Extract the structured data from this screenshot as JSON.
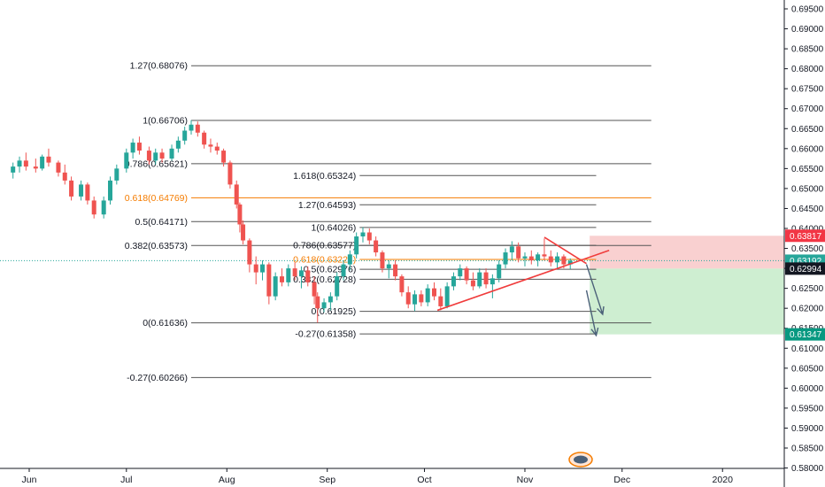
{
  "chart_data": {
    "type": "candlestick",
    "title": "",
    "price_scale": {
      "min": 0.58,
      "max": 0.695,
      "step": 0.005,
      "position": "right",
      "grid": false
    },
    "time_axis": {
      "labels": [
        {
          "label": "Jun",
          "date": "2019-06-01"
        },
        {
          "label": "Jul",
          "date": "2019-07-01"
        },
        {
          "label": "Aug",
          "date": "2019-08-01"
        },
        {
          "label": "Sep",
          "date": "2019-09-01"
        },
        {
          "label": "Oct",
          "date": "2019-10-01"
        },
        {
          "label": "Nov",
          "date": "2019-11-01"
        },
        {
          "label": "Dec",
          "date": "2019-12-01"
        },
        {
          "label": "2020",
          "date": "2020-01-01"
        }
      ]
    },
    "colors": {
      "up": "#26a69a",
      "down": "#ef5350",
      "fib_line": "#555555",
      "fib_orange": "#f57c00",
      "trend_line": "#f03c3c",
      "arrow": "#4a6078",
      "stop_zone": "#f8c8c8",
      "target_zone": "#c6ebc9",
      "label_red": "#f23645",
      "label_teal": "#26a69a",
      "label_dark": "#131722",
      "label_green": "#089981"
    },
    "candles": [
      {
        "t": "2019-05-27",
        "o": 0.654,
        "h": 0.6565,
        "l": 0.6525,
        "c": 0.6555
      },
      {
        "t": "2019-05-29",
        "o": 0.6555,
        "h": 0.658,
        "l": 0.654,
        "c": 0.657
      },
      {
        "t": "2019-05-31",
        "o": 0.657,
        "h": 0.659,
        "l": 0.6545,
        "c": 0.6555
      },
      {
        "t": "2019-06-03",
        "o": 0.6555,
        "h": 0.6575,
        "l": 0.654,
        "c": 0.655
      },
      {
        "t": "2019-06-05",
        "o": 0.655,
        "h": 0.6585,
        "l": 0.6545,
        "c": 0.658
      },
      {
        "t": "2019-06-07",
        "o": 0.658,
        "h": 0.66,
        "l": 0.6555,
        "c": 0.6565
      },
      {
        "t": "2019-06-10",
        "o": 0.6565,
        "h": 0.657,
        "l": 0.653,
        "c": 0.654
      },
      {
        "t": "2019-06-12",
        "o": 0.654,
        "h": 0.656,
        "l": 0.651,
        "c": 0.652
      },
      {
        "t": "2019-06-14",
        "o": 0.652,
        "h": 0.653,
        "l": 0.647,
        "c": 0.648
      },
      {
        "t": "2019-06-17",
        "o": 0.648,
        "h": 0.652,
        "l": 0.647,
        "c": 0.651
      },
      {
        "t": "2019-06-19",
        "o": 0.651,
        "h": 0.6515,
        "l": 0.646,
        "c": 0.647
      },
      {
        "t": "2019-06-21",
        "o": 0.647,
        "h": 0.648,
        "l": 0.6425,
        "c": 0.6435
      },
      {
        "t": "2019-06-24",
        "o": 0.6435,
        "h": 0.648,
        "l": 0.6425,
        "c": 0.647
      },
      {
        "t": "2019-06-26",
        "o": 0.647,
        "h": 0.653,
        "l": 0.646,
        "c": 0.652
      },
      {
        "t": "2019-06-28",
        "o": 0.652,
        "h": 0.656,
        "l": 0.651,
        "c": 0.655
      },
      {
        "t": "2019-07-01",
        "o": 0.655,
        "h": 0.66,
        "l": 0.654,
        "c": 0.659
      },
      {
        "t": "2019-07-03",
        "o": 0.659,
        "h": 0.6625,
        "l": 0.6575,
        "c": 0.6615
      },
      {
        "t": "2019-07-05",
        "o": 0.6615,
        "h": 0.663,
        "l": 0.6585,
        "c": 0.6595
      },
      {
        "t": "2019-07-08",
        "o": 0.6595,
        "h": 0.6605,
        "l": 0.656,
        "c": 0.657
      },
      {
        "t": "2019-07-10",
        "o": 0.657,
        "h": 0.66,
        "l": 0.656,
        "c": 0.659
      },
      {
        "t": "2019-07-12",
        "o": 0.659,
        "h": 0.66,
        "l": 0.6565,
        "c": 0.6575
      },
      {
        "t": "2019-07-15",
        "o": 0.6575,
        "h": 0.661,
        "l": 0.657,
        "c": 0.66
      },
      {
        "t": "2019-07-17",
        "o": 0.66,
        "h": 0.663,
        "l": 0.659,
        "c": 0.662
      },
      {
        "t": "2019-07-19",
        "o": 0.662,
        "h": 0.6655,
        "l": 0.661,
        "c": 0.6645
      },
      {
        "t": "2019-07-21",
        "o": 0.6645,
        "h": 0.6671,
        "l": 0.6635,
        "c": 0.666
      },
      {
        "t": "2019-07-23",
        "o": 0.666,
        "h": 0.6668,
        "l": 0.663,
        "c": 0.664
      },
      {
        "t": "2019-07-25",
        "o": 0.664,
        "h": 0.6645,
        "l": 0.66,
        "c": 0.661
      },
      {
        "t": "2019-07-27",
        "o": 0.661,
        "h": 0.6625,
        "l": 0.659,
        "c": 0.6605
      },
      {
        "t": "2019-07-29",
        "o": 0.6605,
        "h": 0.6615,
        "l": 0.6585,
        "c": 0.6595
      },
      {
        "t": "2019-07-31",
        "o": 0.6595,
        "h": 0.66,
        "l": 0.6555,
        "c": 0.6565
      },
      {
        "t": "2019-08-02",
        "o": 0.6565,
        "h": 0.657,
        "l": 0.65,
        "c": 0.651
      },
      {
        "t": "2019-08-04",
        "o": 0.651,
        "h": 0.652,
        "l": 0.645,
        "c": 0.646
      },
      {
        "t": "2019-08-05",
        "o": 0.646,
        "h": 0.6465,
        "l": 0.639,
        "c": 0.641
      },
      {
        "t": "2019-08-06",
        "o": 0.641,
        "h": 0.642,
        "l": 0.636,
        "c": 0.637
      },
      {
        "t": "2019-08-08",
        "o": 0.637,
        "h": 0.6375,
        "l": 0.629,
        "c": 0.631
      },
      {
        "t": "2019-08-10",
        "o": 0.631,
        "h": 0.633,
        "l": 0.626,
        "c": 0.629
      },
      {
        "t": "2019-08-12",
        "o": 0.629,
        "h": 0.632,
        "l": 0.627,
        "c": 0.631
      },
      {
        "t": "2019-08-14",
        "o": 0.631,
        "h": 0.6315,
        "l": 0.621,
        "c": 0.623
      },
      {
        "t": "2019-08-16",
        "o": 0.623,
        "h": 0.629,
        "l": 0.622,
        "c": 0.628
      },
      {
        "t": "2019-08-18",
        "o": 0.628,
        "h": 0.63,
        "l": 0.6255,
        "c": 0.6265
      },
      {
        "t": "2019-08-20",
        "o": 0.6265,
        "h": 0.631,
        "l": 0.6255,
        "c": 0.63
      },
      {
        "t": "2019-08-22",
        "o": 0.63,
        "h": 0.6315,
        "l": 0.627,
        "c": 0.628
      },
      {
        "t": "2019-08-24",
        "o": 0.628,
        "h": 0.6305,
        "l": 0.625,
        "c": 0.6295
      },
      {
        "t": "2019-08-26",
        "o": 0.6295,
        "h": 0.6305,
        "l": 0.6255,
        "c": 0.6265
      },
      {
        "t": "2019-08-28",
        "o": 0.6265,
        "h": 0.628,
        "l": 0.621,
        "c": 0.623
      },
      {
        "t": "2019-08-29",
        "o": 0.623,
        "h": 0.624,
        "l": 0.6164,
        "c": 0.62
      },
      {
        "t": "2019-08-31",
        "o": 0.62,
        "h": 0.6225,
        "l": 0.619,
        "c": 0.6215
      },
      {
        "t": "2019-09-02",
        "o": 0.6215,
        "h": 0.624,
        "l": 0.6195,
        "c": 0.623
      },
      {
        "t": "2019-09-04",
        "o": 0.623,
        "h": 0.629,
        "l": 0.622,
        "c": 0.628
      },
      {
        "t": "2019-09-06",
        "o": 0.628,
        "h": 0.632,
        "l": 0.627,
        "c": 0.631
      },
      {
        "t": "2019-09-08",
        "o": 0.631,
        "h": 0.6345,
        "l": 0.6295,
        "c": 0.6335
      },
      {
        "t": "2019-09-10",
        "o": 0.6335,
        "h": 0.639,
        "l": 0.6325,
        "c": 0.638
      },
      {
        "t": "2019-09-12",
        "o": 0.638,
        "h": 0.6403,
        "l": 0.6365,
        "c": 0.639
      },
      {
        "t": "2019-09-14",
        "o": 0.639,
        "h": 0.64,
        "l": 0.636,
        "c": 0.637
      },
      {
        "t": "2019-09-16",
        "o": 0.637,
        "h": 0.638,
        "l": 0.633,
        "c": 0.634
      },
      {
        "t": "2019-09-18",
        "o": 0.634,
        "h": 0.6345,
        "l": 0.629,
        "c": 0.63
      },
      {
        "t": "2019-09-20",
        "o": 0.63,
        "h": 0.632,
        "l": 0.6275,
        "c": 0.631
      },
      {
        "t": "2019-09-22",
        "o": 0.631,
        "h": 0.632,
        "l": 0.627,
        "c": 0.628
      },
      {
        "t": "2019-09-24",
        "o": 0.628,
        "h": 0.6285,
        "l": 0.623,
        "c": 0.624
      },
      {
        "t": "2019-09-26",
        "o": 0.624,
        "h": 0.6255,
        "l": 0.62,
        "c": 0.621
      },
      {
        "t": "2019-09-28",
        "o": 0.621,
        "h": 0.6245,
        "l": 0.6193,
        "c": 0.6235
      },
      {
        "t": "2019-09-30",
        "o": 0.6235,
        "h": 0.6245,
        "l": 0.6205,
        "c": 0.6215
      },
      {
        "t": "2019-10-02",
        "o": 0.6215,
        "h": 0.626,
        "l": 0.6205,
        "c": 0.625
      },
      {
        "t": "2019-10-04",
        "o": 0.625,
        "h": 0.6265,
        "l": 0.622,
        "c": 0.623
      },
      {
        "t": "2019-10-06",
        "o": 0.623,
        "h": 0.625,
        "l": 0.6195,
        "c": 0.6205
      },
      {
        "t": "2019-10-08",
        "o": 0.6205,
        "h": 0.6265,
        "l": 0.62,
        "c": 0.6255
      },
      {
        "t": "2019-10-10",
        "o": 0.6255,
        "h": 0.629,
        "l": 0.6245,
        "c": 0.628
      },
      {
        "t": "2019-10-12",
        "o": 0.628,
        "h": 0.631,
        "l": 0.627,
        "c": 0.63
      },
      {
        "t": "2019-10-14",
        "o": 0.63,
        "h": 0.6305,
        "l": 0.626,
        "c": 0.627
      },
      {
        "t": "2019-10-16",
        "o": 0.627,
        "h": 0.629,
        "l": 0.6245,
        "c": 0.6255
      },
      {
        "t": "2019-10-18",
        "o": 0.6255,
        "h": 0.63,
        "l": 0.625,
        "c": 0.629
      },
      {
        "t": "2019-10-20",
        "o": 0.629,
        "h": 0.63,
        "l": 0.625,
        "c": 0.626
      },
      {
        "t": "2019-10-22",
        "o": 0.626,
        "h": 0.6285,
        "l": 0.6225,
        "c": 0.6275
      },
      {
        "t": "2019-10-24",
        "o": 0.6275,
        "h": 0.632,
        "l": 0.6265,
        "c": 0.631
      },
      {
        "t": "2019-10-26",
        "o": 0.631,
        "h": 0.635,
        "l": 0.63,
        "c": 0.634
      },
      {
        "t": "2019-10-28",
        "o": 0.634,
        "h": 0.6368,
        "l": 0.632,
        "c": 0.6355
      },
      {
        "t": "2019-10-30",
        "o": 0.6355,
        "h": 0.6365,
        "l": 0.6315,
        "c": 0.6325
      },
      {
        "t": "2019-11-01",
        "o": 0.6325,
        "h": 0.634,
        "l": 0.6305,
        "c": 0.633
      },
      {
        "t": "2019-11-03",
        "o": 0.633,
        "h": 0.6345,
        "l": 0.631,
        "c": 0.632
      },
      {
        "t": "2019-11-05",
        "o": 0.632,
        "h": 0.634,
        "l": 0.6305,
        "c": 0.6335
      },
      {
        "t": "2019-11-07",
        "o": 0.6335,
        "h": 0.6375,
        "l": 0.632,
        "c": 0.633
      },
      {
        "t": "2019-11-09",
        "o": 0.633,
        "h": 0.6345,
        "l": 0.6305,
        "c": 0.6315
      },
      {
        "t": "2019-11-11",
        "o": 0.6315,
        "h": 0.634,
        "l": 0.63,
        "c": 0.633
      },
      {
        "t": "2019-11-13",
        "o": 0.633,
        "h": 0.6335,
        "l": 0.63,
        "c": 0.631
      },
      {
        "t": "2019-11-15",
        "o": 0.631,
        "h": 0.6325,
        "l": 0.6298,
        "c": 0.6319
      }
    ],
    "fib_left": {
      "t_start": "2019-07-21",
      "t_end": "2019-12-10",
      "levels": [
        {
          "label": "1.27(0.68076)",
          "price": 0.68076,
          "orange": false
        },
        {
          "label": "1(0.66706)",
          "price": 0.66706,
          "orange": false
        },
        {
          "label": "0.786(0.65621)",
          "price": 0.65621,
          "orange": false
        },
        {
          "label": "0.618(0.64769)",
          "price": 0.64769,
          "orange": true
        },
        {
          "label": "0.5(0.64171)",
          "price": 0.64171,
          "orange": false
        },
        {
          "label": "0.382(0.63573)",
          "price": 0.63573,
          "orange": false
        },
        {
          "label": "0(0.61636)",
          "price": 0.61636,
          "orange": false
        },
        {
          "label": "-0.27(0.60266)",
          "price": 0.60266,
          "orange": false
        }
      ]
    },
    "fib_right": {
      "t_start": "2019-09-11",
      "t_end": "2019-11-23",
      "levels": [
        {
          "label": "1.618(0.65324)",
          "price": 0.65324,
          "orange": false
        },
        {
          "label": "1.27(0.64593)",
          "price": 0.64593,
          "orange": false
        },
        {
          "label": "1(0.64026)",
          "price": 0.64026,
          "orange": false
        },
        {
          "label": "0.786(0.63577)",
          "price": 0.63577,
          "orange": false
        },
        {
          "label": "0.618(0.63224)",
          "price": 0.63224,
          "orange": true
        },
        {
          "label": "0.5(0.62976)",
          "price": 0.62976,
          "orange": false
        },
        {
          "label": "0.382(0.62728)",
          "price": 0.62728,
          "orange": false
        },
        {
          "label": "0(0.61925)",
          "price": 0.61925,
          "orange": false
        },
        {
          "label": "-0.27(0.61358)",
          "price": 0.61358,
          "orange": false
        }
      ]
    },
    "trend_lines": [
      {
        "t1": "2019-10-05",
        "p1": 0.6195,
        "t2": "2019-11-27",
        "p2": 0.6345
      },
      {
        "t1": "2019-11-07",
        "p1": 0.6378,
        "t2": "2019-11-20",
        "p2": 0.6312
      }
    ],
    "arrows": [
      {
        "t1": "2019-11-20",
        "p1": 0.631,
        "t2": "2019-11-25",
        "p2": 0.6185
      },
      {
        "t1": "2019-11-20",
        "p1": 0.6245,
        "t2": "2019-11-23",
        "p2": 0.6132
      }
    ],
    "position": {
      "t_start": "2019-11-21",
      "t_end": "2020-01-31",
      "stop": 0.63817,
      "entry": 0.62994,
      "target": 0.61347
    },
    "price_labels": [
      {
        "value": "0.63817",
        "price": 0.63817,
        "color": "#f23645"
      },
      {
        "value": "0.63192",
        "price": 0.63192,
        "color": "#26a69a"
      },
      {
        "value": "0.62994",
        "price": 0.62994,
        "color": "#131722"
      },
      {
        "value": "0.61347",
        "price": 0.61347,
        "color": "#089981"
      }
    ],
    "current_price": 0.63192
  }
}
